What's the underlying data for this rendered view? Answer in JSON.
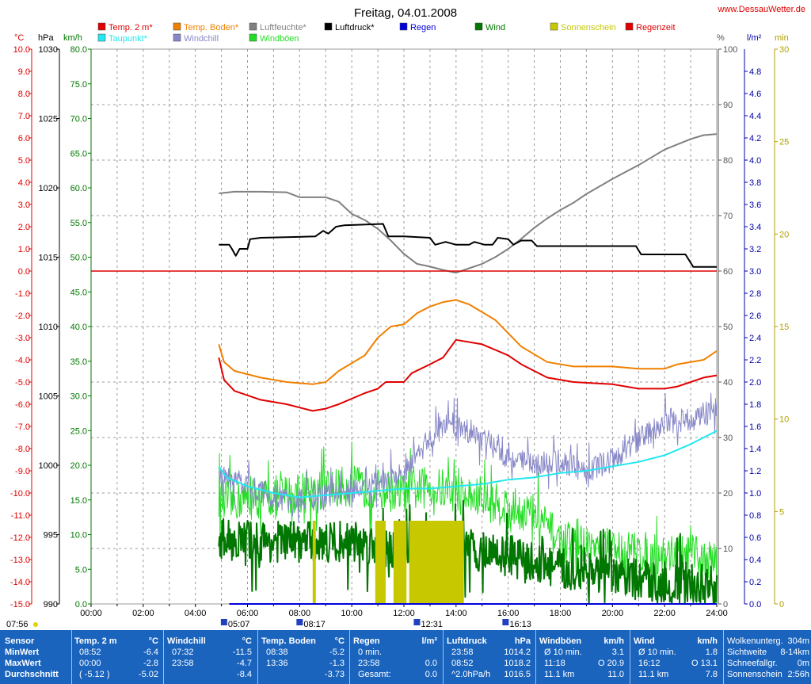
{
  "title": "Freitag, 04.01.2008",
  "site": "www.DessauWetter.de",
  "legend": [
    {
      "label": "Temp. 2 m*",
      "color": "#e00000"
    },
    {
      "label": "Taupunkt*",
      "color": "#22e8f0"
    },
    {
      "label": "Temp. Boden*",
      "color": "#f08000"
    },
    {
      "label": "Windchill",
      "color": "#8888c8"
    },
    {
      "label": "Luftfeuchte*",
      "color": "#808080"
    },
    {
      "label": "Windböen",
      "color": "#22dd22"
    },
    {
      "label": "Luftdruck*",
      "color": "#000000"
    },
    {
      "label": "Regen",
      "color": "#0000dd"
    },
    {
      "label": "Wind",
      "color": "#007700"
    },
    {
      "label": "Sonnenschein",
      "color": "#c8c800"
    },
    {
      "label": "Regenzeit",
      "color": "#e00000"
    }
  ],
  "axis_units": {
    "temp": "°C",
    "press": "hPa",
    "wind": "km/h",
    "hum": "%",
    "rain": "l/m²",
    "min": "min"
  },
  "chart_data": {
    "type": "line",
    "x_unit": "hour of day",
    "xlim": [
      0,
      24
    ],
    "x_ticks": [
      "00:00",
      "02:00",
      "04:00",
      "06:00",
      "08:00",
      "10:00",
      "12:00",
      "14:00",
      "16:00",
      "18:00",
      "20:00",
      "22:00",
      "24:00"
    ],
    "temp_axis": {
      "unit": "°C",
      "range": [
        -15,
        10
      ],
      "ticks": [
        "10.0",
        "9.0",
        "8.0",
        "7.0",
        "6.0",
        "5.0",
        "4.0",
        "3.0",
        "2.0",
        "1.0",
        "0.0",
        "-1.0",
        "-2.0",
        "-3.0",
        "-4.0",
        "-5.0",
        "-6.0",
        "-7.0",
        "-8.0",
        "-9.0",
        "-10.0",
        "-11.0",
        "-12.0",
        "-13.0",
        "-14.0",
        "-15.0"
      ]
    },
    "pressure_axis": {
      "unit": "hPa",
      "range": [
        990,
        1030
      ],
      "ticks": [
        "1030",
        "1025",
        "1020",
        "1015",
        "1010",
        "1005",
        "1000",
        "995",
        "990"
      ]
    },
    "wind_axis": {
      "unit": "km/h",
      "range": [
        0,
        80
      ],
      "ticks": [
        "80.0",
        "75.0",
        "70.0",
        "65.0",
        "60.0",
        "55.0",
        "50.0",
        "45.0",
        "40.0",
        "35.0",
        "30.0",
        "25.0",
        "20.0",
        "15.0",
        "10.0",
        "5.0",
        "0.0"
      ]
    },
    "humidity_axis": {
      "unit": "%",
      "range": [
        0,
        100
      ],
      "ticks": [
        "100",
        "90",
        "80",
        "70",
        "60",
        "50",
        "40",
        "30",
        "20",
        "10",
        "0"
      ]
    },
    "rain_axis": {
      "unit": "l/m²",
      "range": [
        0,
        5
      ],
      "ticks": [
        "4.8",
        "4.6",
        "4.4",
        "4.2",
        "4.0",
        "3.8",
        "3.6",
        "3.4",
        "3.2",
        "3.0",
        "2.8",
        "2.6",
        "2.4",
        "2.2",
        "2.0",
        "1.8",
        "1.6",
        "1.4",
        "1.2",
        "1.0",
        "0.8",
        "0.6",
        "0.4",
        "0.2",
        "0.0"
      ]
    },
    "sun_axis": {
      "unit": "min",
      "range": [
        0,
        30
      ],
      "ticks": [
        "30",
        "25",
        "20",
        "15",
        "10",
        "5",
        "0"
      ]
    },
    "reference_line_temp": 0,
    "series": [
      {
        "name": "Temp. 2 m*",
        "axis": "temp",
        "points": [
          [
            4.9,
            -3.9
          ],
          [
            5.1,
            -4.9
          ],
          [
            5.5,
            -5.4
          ],
          [
            6.5,
            -5.8
          ],
          [
            7.5,
            -6.0
          ],
          [
            8.5,
            -6.3
          ],
          [
            9.0,
            -6.2
          ],
          [
            9.5,
            -6.0
          ],
          [
            10.5,
            -5.5
          ],
          [
            11.0,
            -5.3
          ],
          [
            11.3,
            -5.0
          ],
          [
            12.0,
            -5.0
          ],
          [
            12.3,
            -4.6
          ],
          [
            13.0,
            -4.2
          ],
          [
            13.5,
            -3.9
          ],
          [
            14.0,
            -3.1
          ],
          [
            15.0,
            -3.3
          ],
          [
            16.0,
            -3.8
          ],
          [
            16.5,
            -4.2
          ],
          [
            17.5,
            -4.8
          ],
          [
            18.5,
            -5.0
          ],
          [
            20.0,
            -5.1
          ],
          [
            21.0,
            -5.3
          ],
          [
            22.0,
            -5.3
          ],
          [
            22.5,
            -5.2
          ],
          [
            23.0,
            -5.0
          ],
          [
            23.5,
            -4.8
          ],
          [
            24.0,
            -4.7
          ]
        ]
      },
      {
        "name": "Temp. Boden*",
        "axis": "temp",
        "points": [
          [
            4.9,
            -3.3
          ],
          [
            5.1,
            -4.1
          ],
          [
            5.5,
            -4.5
          ],
          [
            6.5,
            -4.8
          ],
          [
            7.5,
            -5.0
          ],
          [
            8.5,
            -5.1
          ],
          [
            9.0,
            -5.0
          ],
          [
            9.5,
            -4.5
          ],
          [
            10.5,
            -3.8
          ],
          [
            11.0,
            -3.0
          ],
          [
            11.5,
            -2.5
          ],
          [
            12.0,
            -2.4
          ],
          [
            12.5,
            -1.9
          ],
          [
            13.0,
            -1.6
          ],
          [
            13.5,
            -1.4
          ],
          [
            14.0,
            -1.3
          ],
          [
            14.5,
            -1.5
          ],
          [
            15.5,
            -2.2
          ],
          [
            16.5,
            -3.4
          ],
          [
            17.5,
            -4.1
          ],
          [
            18.5,
            -4.3
          ],
          [
            20.0,
            -4.3
          ],
          [
            21.0,
            -4.4
          ],
          [
            22.0,
            -4.4
          ],
          [
            22.5,
            -4.2
          ],
          [
            23.5,
            -4.0
          ],
          [
            24.0,
            -3.6
          ]
        ]
      },
      {
        "name": "Taupunkt*",
        "axis": "temp",
        "points": [
          [
            4.9,
            -8.8
          ],
          [
            5.2,
            -9.3
          ],
          [
            6.0,
            -9.7
          ],
          [
            7.0,
            -10.0
          ],
          [
            8.0,
            -10.2
          ],
          [
            9.0,
            -10.1
          ],
          [
            10.0,
            -10.0
          ],
          [
            11.0,
            -9.9
          ],
          [
            12.0,
            -9.8
          ],
          [
            13.0,
            -9.8
          ],
          [
            14.0,
            -9.7
          ],
          [
            15.0,
            -9.6
          ],
          [
            16.0,
            -9.4
          ],
          [
            17.0,
            -9.3
          ],
          [
            18.0,
            -9.1
          ],
          [
            19.0,
            -9.0
          ],
          [
            20.0,
            -8.8
          ],
          [
            21.0,
            -8.6
          ],
          [
            22.0,
            -8.3
          ],
          [
            23.0,
            -7.8
          ],
          [
            24.0,
            -7.2
          ]
        ]
      },
      {
        "name": "Windchill",
        "axis": "temp",
        "noise": 0.55,
        "points": [
          [
            4.9,
            -9.3
          ],
          [
            6.0,
            -9.6
          ],
          [
            7.0,
            -10.2
          ],
          [
            8.0,
            -10.3
          ],
          [
            9.0,
            -10.1
          ],
          [
            10.0,
            -9.9
          ],
          [
            11.0,
            -9.6
          ],
          [
            12.0,
            -9.2
          ],
          [
            12.5,
            -8.4
          ],
          [
            13.0,
            -7.5
          ],
          [
            13.5,
            -7.0
          ],
          [
            14.0,
            -6.9
          ],
          [
            15.0,
            -7.5
          ],
          [
            16.0,
            -8.4
          ],
          [
            17.0,
            -8.7
          ],
          [
            18.0,
            -8.6
          ],
          [
            19.0,
            -9.0
          ],
          [
            20.0,
            -8.5
          ],
          [
            21.0,
            -7.6
          ],
          [
            22.0,
            -6.8
          ],
          [
            23.0,
            -6.7
          ],
          [
            24.0,
            -6.2
          ]
        ]
      },
      {
        "name": "Luftfeuchte*",
        "axis": "hum",
        "points": [
          [
            4.9,
            74
          ],
          [
            5.5,
            74.3
          ],
          [
            6.5,
            74.3
          ],
          [
            7.5,
            74.2
          ],
          [
            8.0,
            73.3
          ],
          [
            9.0,
            73.3
          ],
          [
            9.5,
            72.5
          ],
          [
            10.0,
            70.3
          ],
          [
            10.5,
            69.2
          ],
          [
            11.0,
            67.6
          ],
          [
            11.5,
            65.5
          ],
          [
            12.0,
            63.1
          ],
          [
            12.5,
            61.3
          ],
          [
            13.0,
            60.8
          ],
          [
            13.5,
            60.2
          ],
          [
            14.0,
            59.7
          ],
          [
            14.5,
            60.5
          ],
          [
            15.0,
            61.3
          ],
          [
            15.5,
            62.5
          ],
          [
            16.0,
            64.0
          ],
          [
            16.5,
            65.8
          ],
          [
            17.0,
            67.8
          ],
          [
            17.5,
            69.5
          ],
          [
            18.0,
            71.0
          ],
          [
            18.5,
            72.3
          ],
          [
            19.0,
            73.9
          ],
          [
            20.0,
            76.6
          ],
          [
            21.0,
            79.1
          ],
          [
            22.0,
            81.9
          ],
          [
            23.0,
            83.8
          ],
          [
            23.5,
            84.5
          ],
          [
            24.0,
            84.7
          ]
        ]
      },
      {
        "name": "Luftdruck*",
        "axis": "press",
        "step": true,
        "points": [
          [
            4.9,
            1015.9
          ],
          [
            5.3,
            1015.9
          ],
          [
            5.4,
            1015.6
          ],
          [
            5.55,
            1015.1
          ],
          [
            5.7,
            1015.6
          ],
          [
            6.0,
            1015.6
          ],
          [
            6.1,
            1016.3
          ],
          [
            6.5,
            1016.4
          ],
          [
            8.6,
            1016.5
          ],
          [
            8.9,
            1016.9
          ],
          [
            9.1,
            1016.7
          ],
          [
            9.4,
            1017.2
          ],
          [
            9.7,
            1017.3
          ],
          [
            11.2,
            1017.4
          ],
          [
            11.4,
            1016.5
          ],
          [
            12.0,
            1016.5
          ],
          [
            13.0,
            1016.4
          ],
          [
            13.2,
            1015.9
          ],
          [
            13.6,
            1016.1
          ],
          [
            14.0,
            1015.9
          ],
          [
            14.5,
            1015.9
          ],
          [
            14.7,
            1016.1
          ],
          [
            15.1,
            1015.9
          ],
          [
            15.4,
            1015.9
          ],
          [
            15.6,
            1016.4
          ],
          [
            16.0,
            1016.3
          ],
          [
            16.2,
            1015.9
          ],
          [
            16.5,
            1016.2
          ],
          [
            16.9,
            1016.2
          ],
          [
            17.1,
            1015.8
          ],
          [
            20.9,
            1015.8
          ],
          [
            21.1,
            1015.2
          ],
          [
            22.8,
            1015.2
          ],
          [
            23.1,
            1014.3
          ],
          [
            24.0,
            1014.3
          ]
        ]
      },
      {
        "name": "Windböen",
        "axis": "wind",
        "noise": 3.0,
        "points": [
          [
            4.9,
            15
          ],
          [
            6.0,
            15
          ],
          [
            8.0,
            16
          ],
          [
            10.0,
            17
          ],
          [
            12.0,
            16
          ],
          [
            13.0,
            17
          ],
          [
            14.0,
            16
          ],
          [
            16.0,
            14
          ],
          [
            17.0,
            13
          ],
          [
            18.0,
            9
          ],
          [
            20.0,
            8
          ],
          [
            22.0,
            7
          ],
          [
            23.0,
            7
          ],
          [
            24.0,
            6
          ]
        ]
      },
      {
        "name": "Wind",
        "axis": "wind",
        "noise": 3.0,
        "points": [
          [
            4.9,
            9.5
          ],
          [
            6.0,
            9
          ],
          [
            8.0,
            9
          ],
          [
            10.0,
            9
          ],
          [
            12.0,
            8
          ],
          [
            14.0,
            8
          ],
          [
            16.0,
            7
          ],
          [
            17.0,
            6
          ],
          [
            18.0,
            5
          ],
          [
            20.0,
            4
          ],
          [
            22.0,
            3
          ],
          [
            23.0,
            3
          ],
          [
            24.0,
            2.5
          ]
        ]
      },
      {
        "name": "Sonnenschein",
        "axis": "min",
        "bars": [
          [
            8.5,
            8.62,
            4.5
          ],
          [
            10.9,
            11.3,
            4.5
          ],
          [
            11.6,
            12.1,
            4.5
          ],
          [
            12.2,
            14.3,
            4.5
          ]
        ]
      },
      {
        "name": "Regen",
        "axis": "rain",
        "points": [
          [
            5.3,
            0
          ],
          [
            24,
            0
          ]
        ]
      }
    ]
  },
  "sun_events": [
    {
      "time": "07:56",
      "hour": 0.0,
      "label_left": true
    },
    {
      "time": "05:07",
      "hour": 5.1
    },
    {
      "time": "08:17",
      "hour": 8.0
    },
    {
      "time": "12:31",
      "hour": 12.5
    },
    {
      "time": "16:13",
      "hour": 15.9
    }
  ],
  "stats": {
    "sensor": {
      "title": "Sensor",
      "rows": [
        "MinWert",
        "MaxWert",
        "Durchschnitt"
      ]
    },
    "temp2m": {
      "title": "Temp. 2 m",
      "unit": "°C",
      "rows": [
        [
          "08:52",
          "-6.4"
        ],
        [
          "00:00",
          "-2.8"
        ],
        [
          "( -5.12 )",
          "-5.02"
        ]
      ]
    },
    "windchill": {
      "title": "Windchill",
      "unit": "°C",
      "rows": [
        [
          "07:32",
          "-11.5"
        ],
        [
          "23:58",
          "-4.7"
        ],
        [
          "",
          "-8.4"
        ]
      ]
    },
    "boden": {
      "title": "Temp. Boden",
      "unit": "°C",
      "rows": [
        [
          "08:38",
          "-5.2"
        ],
        [
          "13:36",
          "-1.3"
        ],
        [
          "",
          "-3.73"
        ]
      ]
    },
    "regen": {
      "title": "Regen",
      "unit": "l/m²",
      "rows": [
        [
          "0 min.",
          ""
        ],
        [
          "23:58",
          "0.0"
        ],
        [
          "Gesamt:",
          "0.0"
        ]
      ]
    },
    "druck": {
      "title": "Luftdruck",
      "unit": "hPa",
      "rows": [
        [
          "23:58",
          "1014.2"
        ],
        [
          "08:52",
          "1018.2"
        ],
        [
          "^2.0hPa/h",
          "1016.5"
        ]
      ]
    },
    "boeen": {
      "title": "Windböen",
      "unit": "km/h",
      "rows": [
        [
          "Ø 10 min.",
          "3.1"
        ],
        [
          "11:18",
          "O 20.9"
        ],
        [
          "11.1 km",
          "11.0"
        ]
      ]
    },
    "wind": {
      "title": "Wind",
      "unit": "km/h",
      "rows": [
        [
          "Ø 10 min.",
          "1.8"
        ],
        [
          "16:12",
          "O 13.1"
        ],
        [
          "11.1 km",
          "7.8"
        ]
      ]
    },
    "extra": [
      [
        "Wolkenunterg.",
        "304m"
      ],
      [
        "Sichtweite",
        "8-14km"
      ],
      [
        "Schneefallgr.",
        "0m"
      ],
      [
        "Sonnenschein",
        "2:56h"
      ]
    ]
  }
}
